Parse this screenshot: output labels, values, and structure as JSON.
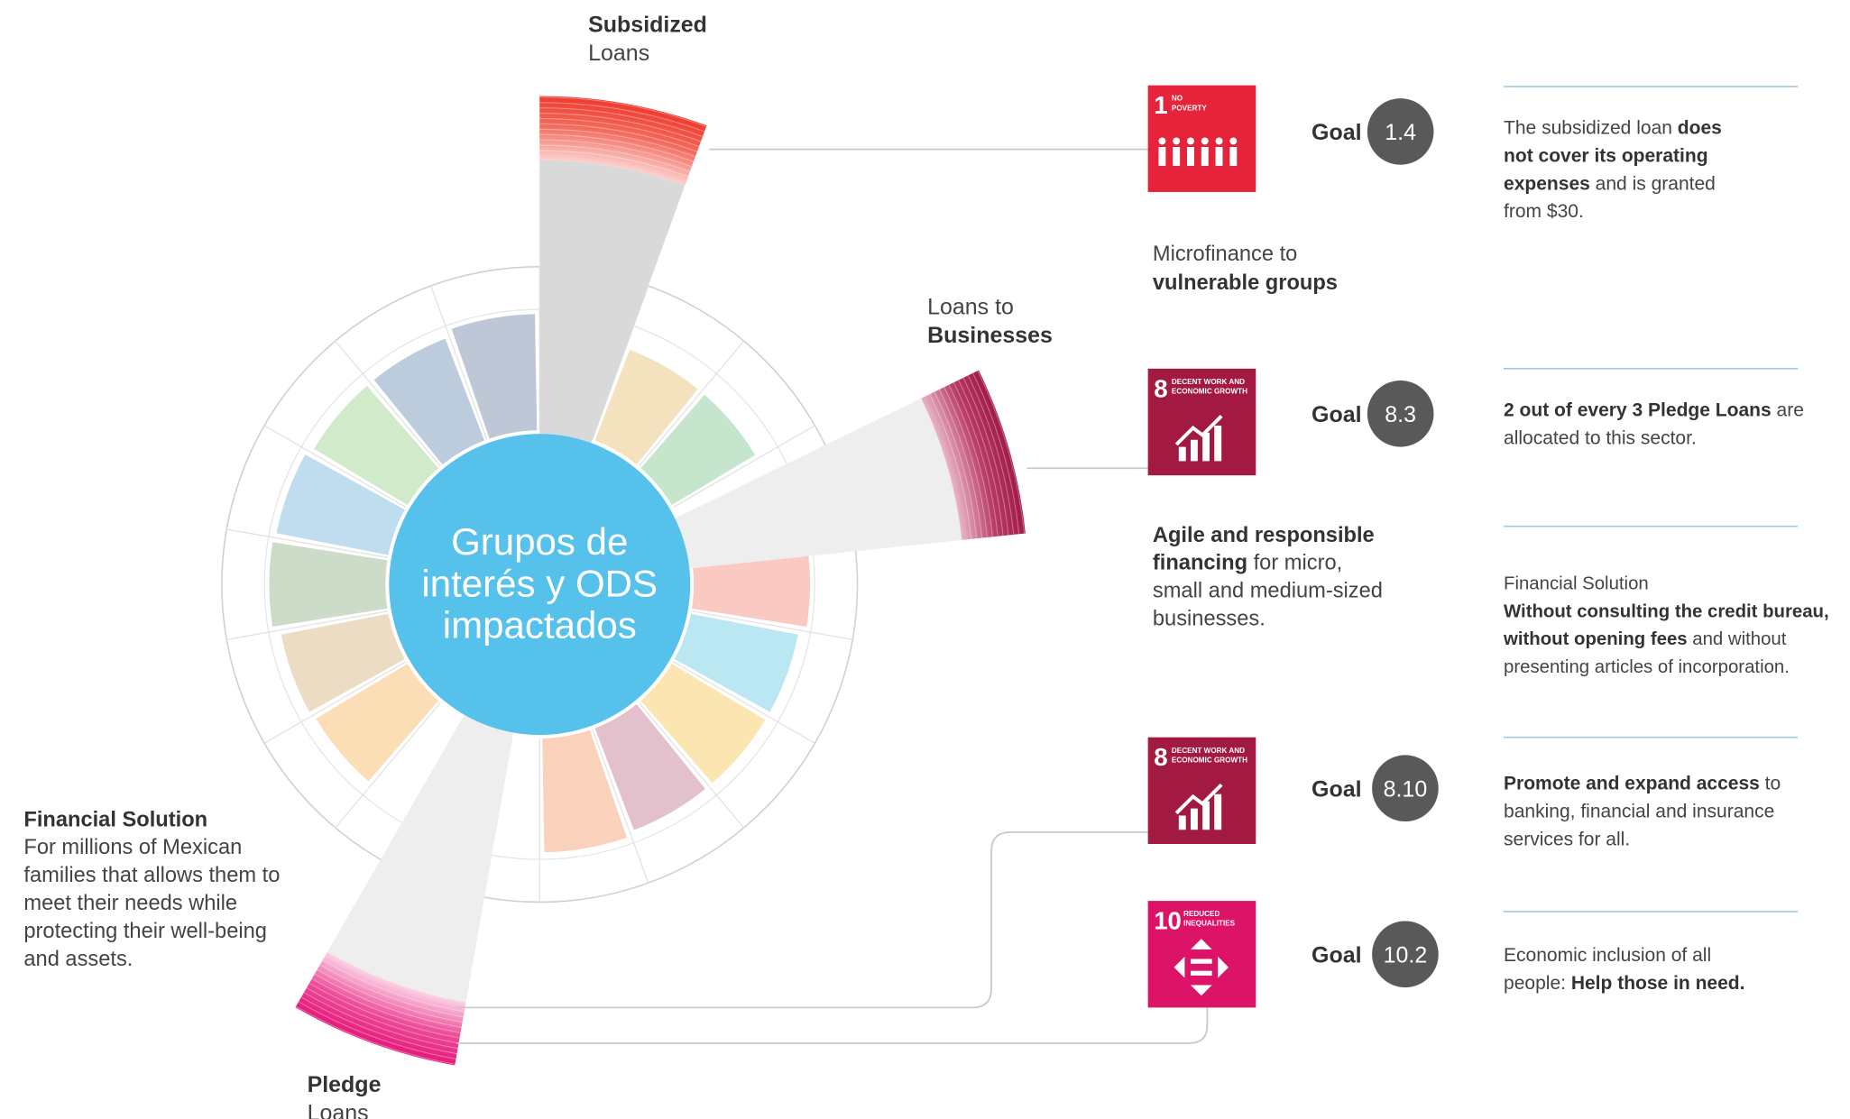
{
  "center_title": [
    "Grupos de",
    "interés y ODS",
    "impactados"
  ],
  "products": [
    {
      "lines": [
        [
          {
            "text": "Subsidized",
            "bold": true
          }
        ],
        [
          {
            "text": "Loans"
          }
        ]
      ]
    },
    {
      "lines": [
        [
          {
            "text": "Loans to"
          }
        ],
        [
          {
            "text": "Businesses",
            "bold": true
          }
        ]
      ]
    },
    {
      "lines": [
        [
          {
            "text": "Pledge",
            "bold": true
          }
        ],
        [
          {
            "text": "Loans"
          }
        ]
      ]
    }
  ],
  "financial_solution": {
    "lines": [
      [
        {
          "text": "Financial Solution",
          "bold": true
        }
      ],
      [
        {
          "text": "For millions of Mexican"
        }
      ],
      [
        {
          "text": "families that allows them to"
        }
      ],
      [
        {
          "text": "meet their needs while"
        }
      ],
      [
        {
          "text": "protecting their well-being"
        }
      ],
      [
        {
          "text": "and assets."
        }
      ]
    ]
  },
  "notes": [
    {
      "lines": [
        [
          {
            "text": "Microfinance to"
          }
        ],
        [
          {
            "text": "vulnerable groups",
            "bold": true
          }
        ]
      ]
    },
    {
      "lines": [
        [
          {
            "text": "Agile and responsible",
            "bold": true
          }
        ],
        [
          {
            "text": "financing",
            "bold": true
          },
          {
            "text": " for micro,"
          }
        ],
        [
          {
            "text": "small and medium-sized"
          }
        ],
        [
          {
            "text": "businesses."
          }
        ]
      ]
    }
  ],
  "goals": [
    {
      "sdg_number": "1",
      "sdg_name": [
        "NO",
        "POVERTY"
      ],
      "goal_label": "Goal",
      "goal": "1.4",
      "description": {
        "lines": [
          [
            {
              "text": "The subsidized loan "
            },
            {
              "text": "does",
              "bold": true
            }
          ],
          [
            {
              "text": "not cover its operating",
              "bold": true
            }
          ],
          [
            {
              "text": "expenses",
              "bold": true
            },
            {
              "text": " and is granted"
            }
          ],
          [
            {
              "text": "from $30."
            }
          ]
        ]
      }
    },
    {
      "sdg_number": "8",
      "sdg_name": [
        "DECENT WORK AND",
        "ECONOMIC GROWTH"
      ],
      "goal_label": "Goal",
      "goal": "8.3",
      "description": {
        "lines": [
          [
            {
              "text": "2 out of every 3 Pledge Loans",
              "bold": true
            },
            {
              "text": " are"
            }
          ],
          [
            {
              "text": "allocated to this sector."
            }
          ]
        ]
      }
    },
    {
      "sdg_number": "8",
      "sdg_name": [
        "DECENT WORK AND",
        "ECONOMIC GROWTH"
      ],
      "goal_label": "Goal",
      "goal": "8.10",
      "description": {
        "lines": [
          [
            {
              "text": "Promote and expand access",
              "bold": true
            },
            {
              "text": " to"
            }
          ],
          [
            {
              "text": "banking, financial and insurance"
            }
          ],
          [
            {
              "text": "services for all."
            }
          ]
        ]
      }
    },
    {
      "sdg_number": "10",
      "sdg_name": [
        "REDUCED",
        "INEQUALITIES"
      ],
      "goal_label": "Goal",
      "goal": "10.2",
      "description": {
        "lines": [
          [
            {
              "text": "Economic inclusion of all"
            }
          ],
          [
            {
              "text": "people: "
            },
            {
              "text": "Help those in need.",
              "bold": true
            }
          ]
        ]
      }
    }
  ],
  "business_solution": {
    "lines": [
      [
        {
          "text": "Financial Solution"
        }
      ],
      [
        {
          "text": "Without consulting the credit bureau,",
          "bold": true
        }
      ],
      [
        {
          "text": "without opening fees",
          "bold": true
        },
        {
          "text": " and without"
        }
      ],
      [
        {
          "text": "presenting articles of incorporation."
        }
      ]
    ]
  }
}
